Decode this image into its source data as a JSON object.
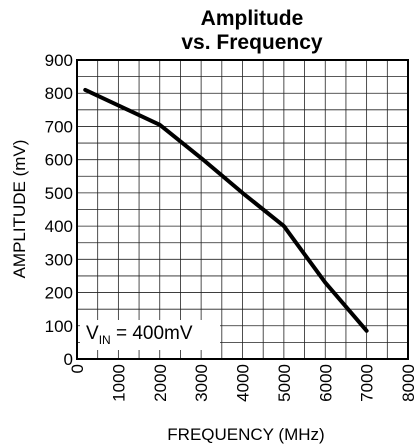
{
  "chart_data": {
    "type": "line",
    "title_line1": "Amplitude",
    "title_line2": "vs. Frequency",
    "xlabel": "FREQUENCY (MHz)",
    "ylabel": "AMPLITUDE (mV)",
    "xlim": [
      0,
      8000
    ],
    "ylim": [
      0,
      900
    ],
    "x_ticks": [
      0,
      1000,
      2000,
      3000,
      4000,
      5000,
      6000,
      7000,
      8000
    ],
    "y_ticks": [
      0,
      100,
      200,
      300,
      400,
      500,
      600,
      700,
      800,
      900
    ],
    "grid": true,
    "series": [
      {
        "x": [
          200,
          2000,
          3000,
          4000,
          5000,
          6000,
          7000
        ],
        "y": [
          810,
          705,
          605,
          500,
          400,
          230,
          85
        ],
        "color": "#000000"
      }
    ],
    "annotation": {
      "v": "V",
      "sub": "IN",
      "rest": " = 400mV"
    }
  }
}
